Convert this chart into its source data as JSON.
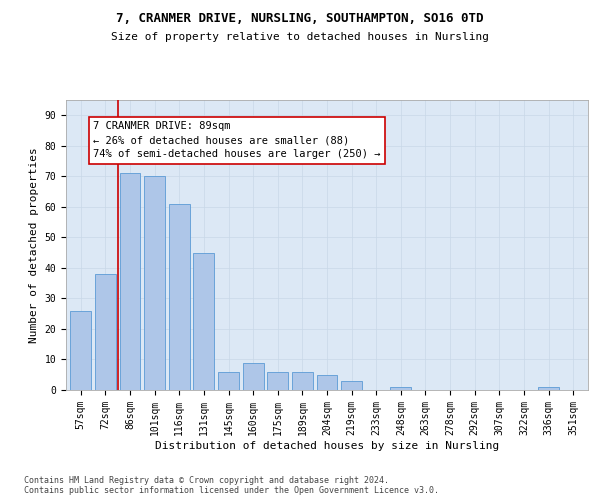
{
  "title1": "7, CRANMER DRIVE, NURSLING, SOUTHAMPTON, SO16 0TD",
  "title2": "Size of property relative to detached houses in Nursling",
  "xlabel": "Distribution of detached houses by size in Nursling",
  "ylabel": "Number of detached properties",
  "categories": [
    "57sqm",
    "72sqm",
    "86sqm",
    "101sqm",
    "116sqm",
    "131sqm",
    "145sqm",
    "160sqm",
    "175sqm",
    "189sqm",
    "204sqm",
    "219sqm",
    "233sqm",
    "248sqm",
    "263sqm",
    "278sqm",
    "292sqm",
    "307sqm",
    "322sqm",
    "336sqm",
    "351sqm"
  ],
  "values": [
    26,
    38,
    71,
    70,
    61,
    45,
    6,
    9,
    6,
    6,
    5,
    3,
    0,
    1,
    0,
    0,
    0,
    0,
    0,
    1,
    0
  ],
  "bar_color": "#aec6e8",
  "bar_edge_color": "#5b9bd5",
  "subject_line_color": "#cc0000",
  "annotation_text": "7 CRANMER DRIVE: 89sqm\n← 26% of detached houses are smaller (88)\n74% of semi-detached houses are larger (250) →",
  "annotation_box_color": "#ffffff",
  "annotation_box_edge_color": "#cc0000",
  "yticks": [
    0,
    10,
    20,
    30,
    40,
    50,
    60,
    70,
    80,
    90
  ],
  "ylim": [
    0,
    95
  ],
  "footer_text": "Contains HM Land Registry data © Crown copyright and database right 2024.\nContains public sector information licensed under the Open Government Licence v3.0.",
  "bg_color": "#ffffff",
  "grid_color": "#c8d8e8",
  "title1_fontsize": 9,
  "title2_fontsize": 8,
  "xlabel_fontsize": 8,
  "ylabel_fontsize": 8,
  "tick_fontsize": 7,
  "annotation_fontsize": 7.5,
  "footer_fontsize": 6.0
}
